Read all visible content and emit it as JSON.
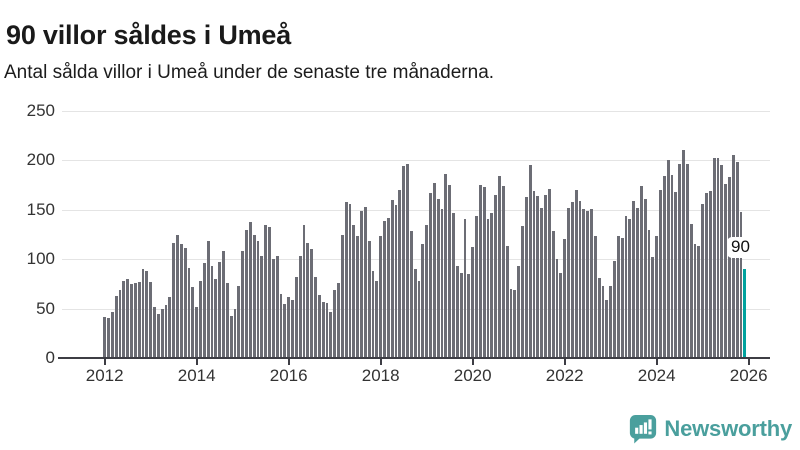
{
  "header": {
    "title": "90 villor såldes i Umeå",
    "subtitle": "Antal sålda villor i Umeå under de senaste tre månaderna."
  },
  "chart_data": {
    "type": "bar",
    "title": "90 villor såldes i Umeå",
    "subtitle": "Antal sålda villor i Umeå under de senaste tre månaderna.",
    "x_start": "2012-01",
    "x_frequency": "monthly",
    "values": [
      42,
      40,
      47,
      63,
      69,
      78,
      80,
      75,
      76,
      77,
      90,
      88,
      77,
      52,
      45,
      50,
      54,
      62,
      116,
      125,
      115,
      111,
      91,
      72,
      52,
      78,
      96,
      118,
      93,
      80,
      97,
      108,
      76,
      43,
      50,
      73,
      108,
      130,
      138,
      125,
      118,
      103,
      135,
      133,
      100,
      103,
      65,
      55,
      62,
      59,
      82,
      103,
      135,
      116,
      110,
      82,
      64,
      57,
      56,
      47,
      69,
      76,
      125,
      158,
      156,
      135,
      123,
      149,
      153,
      118,
      88,
      78,
      123,
      139,
      142,
      160,
      155,
      170,
      194,
      196,
      129,
      90,
      78,
      115,
      135,
      167,
      177,
      161,
      151,
      186,
      175,
      147,
      93,
      86,
      141,
      85,
      112,
      144,
      175,
      173,
      141,
      147,
      165,
      184,
      174,
      113,
      70,
      69,
      93,
      134,
      163,
      195,
      169,
      164,
      152,
      165,
      171,
      129,
      100,
      86,
      120,
      152,
      158,
      170,
      159,
      151,
      149,
      151,
      124,
      81,
      73,
      59,
      73,
      98,
      124,
      121,
      144,
      141,
      159,
      152,
      174,
      161,
      130,
      102,
      124,
      170,
      184,
      200,
      185,
      168,
      196,
      211,
      196,
      136,
      115,
      113,
      156,
      167,
      169,
      202,
      202,
      195,
      176,
      183,
      205,
      198,
      148,
      90
    ],
    "x_tick_labels": [
      "2012",
      "2014",
      "2016",
      "2018",
      "2020",
      "2022",
      "2024",
      "2026"
    ],
    "y_ticks": [
      0,
      50,
      100,
      150,
      200,
      250
    ],
    "ylim": [
      0,
      250
    ],
    "grid": true,
    "legend": "none",
    "bar_color": "#6c6d75",
    "highlight": {
      "index": 167,
      "value": 90,
      "label": "90",
      "color": "#00a29e"
    }
  },
  "footer": {
    "brand": "Newsworthy",
    "brand_color": "#4a9f9d"
  },
  "colors": {
    "bar_gray": "#6c6d75",
    "bar_teal": "#00a29e",
    "gridline": "#e4e4e4",
    "axis": "#3d3d44",
    "text_dark": "#1a1a1a",
    "tick_text": "#333333"
  }
}
